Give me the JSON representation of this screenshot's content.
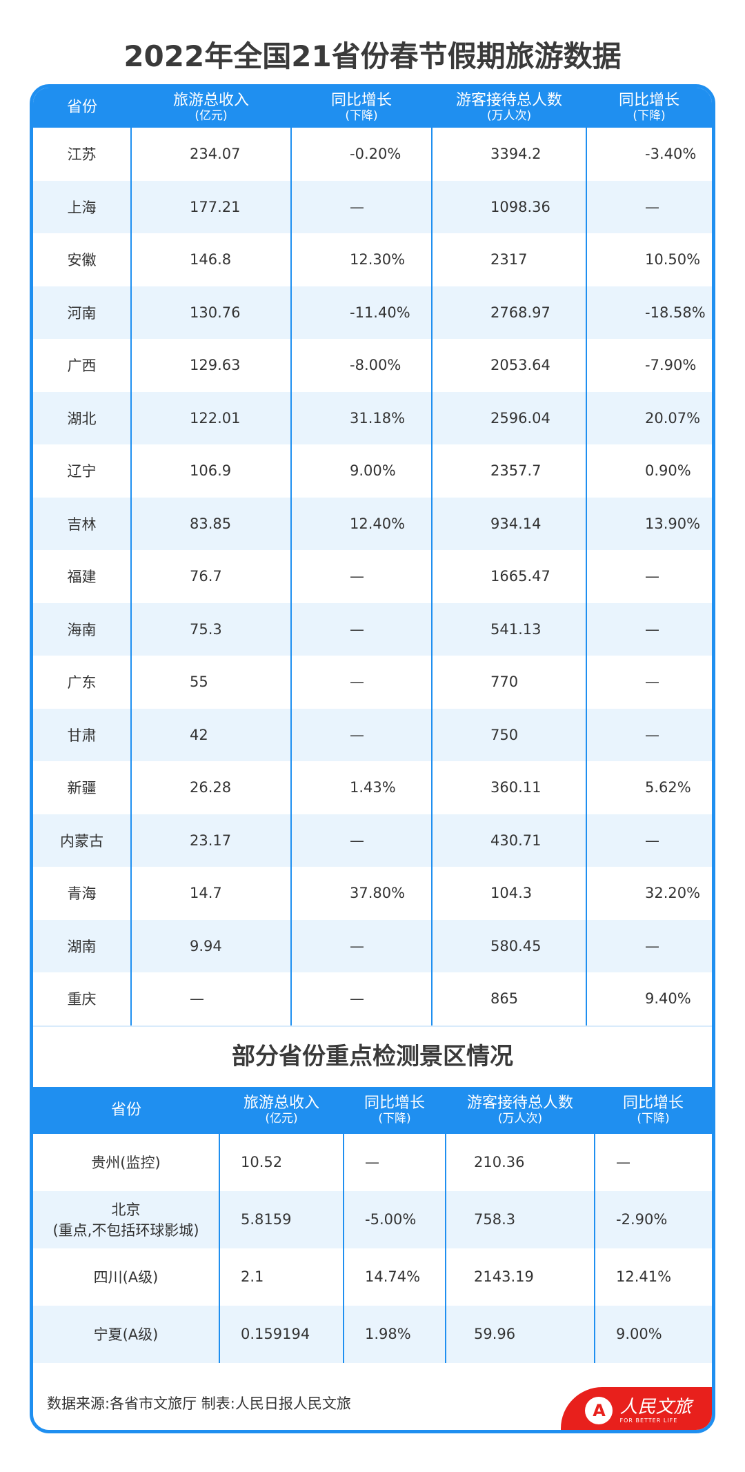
{
  "title": "2022年全国21省份春节假期旅游数据",
  "colors": {
    "accent": "#1f8ff0",
    "row_alt": "#e9f4fd",
    "badge": "#e8201c"
  },
  "table1": {
    "headers": [
      {
        "label": "省份",
        "sub": ""
      },
      {
        "label": "旅游总收入",
        "sub": "(亿元)"
      },
      {
        "label": "同比增长",
        "sub": "(下降)"
      },
      {
        "label": "游客接待总人数",
        "sub": "(万人次)"
      },
      {
        "label": "同比增长",
        "sub": "(下降)"
      }
    ],
    "rows": [
      [
        "江苏",
        "234.07",
        "-0.20%",
        "3394.2",
        "-3.40%"
      ],
      [
        "上海",
        "177.21",
        "—",
        "1098.36",
        "—"
      ],
      [
        "安徽",
        "146.8",
        "12.30%",
        "2317",
        "10.50%"
      ],
      [
        "河南",
        "130.76",
        "-11.40%",
        "2768.97",
        "-18.58%"
      ],
      [
        "广西",
        "129.63",
        "-8.00%",
        "2053.64",
        "-7.90%"
      ],
      [
        "湖北",
        "122.01",
        "31.18%",
        "2596.04",
        "20.07%"
      ],
      [
        "辽宁",
        "106.9",
        "9.00%",
        "2357.7",
        "0.90%"
      ],
      [
        "吉林",
        "83.85",
        "12.40%",
        "934.14",
        "13.90%"
      ],
      [
        "福建",
        "76.7",
        "—",
        "1665.47",
        "—"
      ],
      [
        "海南",
        "75.3",
        "—",
        "541.13",
        "—"
      ],
      [
        "广东",
        "55",
        "—",
        "770",
        "—"
      ],
      [
        "甘肃",
        "42",
        "—",
        "750",
        "—"
      ],
      [
        "新疆",
        "26.28",
        "1.43%",
        "360.11",
        "5.62%"
      ],
      [
        "内蒙古",
        "23.17",
        "—",
        "430.71",
        "—"
      ],
      [
        "青海",
        "14.7",
        "37.80%",
        "104.3",
        "32.20%"
      ],
      [
        "湖南",
        "9.94",
        "—",
        "580.45",
        "—"
      ],
      [
        "重庆",
        "—",
        "—",
        "865",
        "9.40%"
      ]
    ]
  },
  "section2_title": "部分省份重点检测景区情况",
  "table2": {
    "headers": [
      {
        "label": "省份",
        "sub": ""
      },
      {
        "label": "旅游总收入",
        "sub": "(亿元)"
      },
      {
        "label": "同比增长",
        "sub": "(下降)"
      },
      {
        "label": "游客接待总人数",
        "sub": "(万人次)"
      },
      {
        "label": "同比增长",
        "sub": "(下降)"
      }
    ],
    "rows": [
      [
        "贵州(监控)",
        "10.52",
        "—",
        "210.36",
        "—"
      ],
      [
        "北京\n(重点,不包括环球影城)",
        "5.8159",
        "-5.00%",
        "758.3",
        "-2.90%"
      ],
      [
        "四川(A级)",
        "2.1",
        "14.74%",
        "2143.19",
        "12.41%"
      ],
      [
        "宁夏(A级)",
        "0.159194",
        "1.98%",
        "59.96",
        "9.00%"
      ]
    ]
  },
  "footer": "数据来源:各省市文旅厅  制表:人民日报人民文旅",
  "badge": {
    "logo_text": "A",
    "name": "人民文旅",
    "slogan": "FOR BETTER LIFE"
  }
}
